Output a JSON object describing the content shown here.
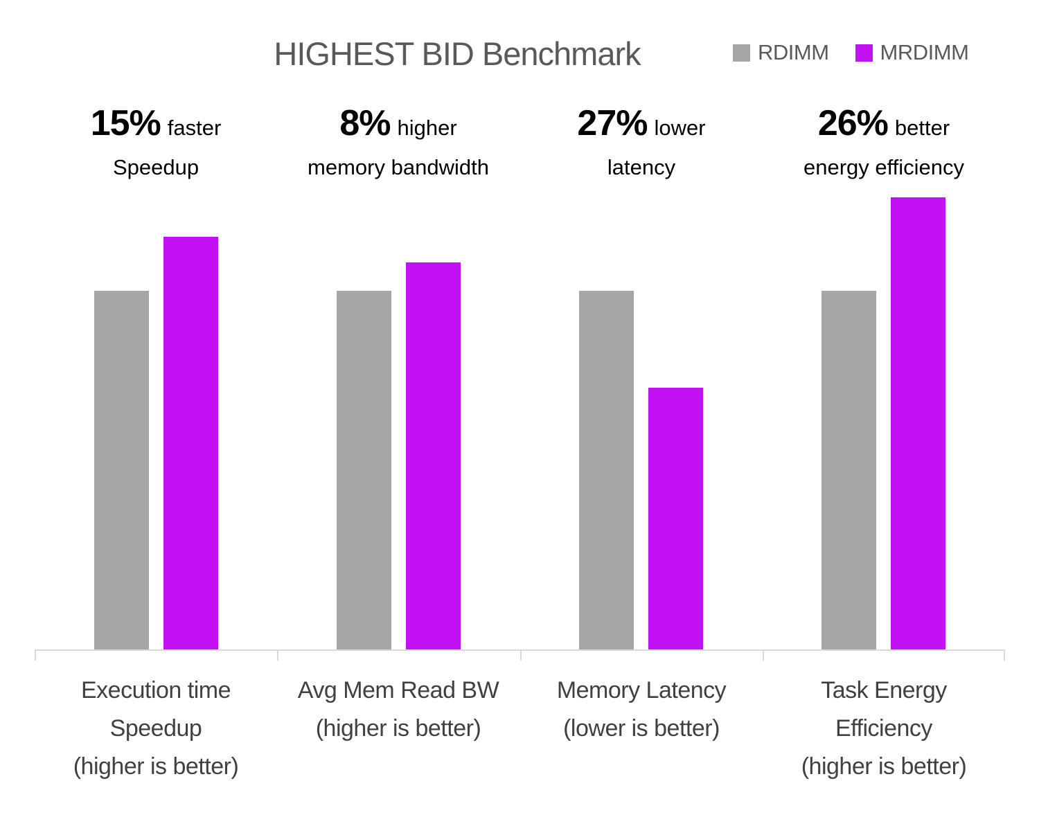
{
  "title": "HIGHEST BID Benchmark",
  "chart_data": {
    "type": "bar",
    "title": "HIGHEST BID Benchmark",
    "categories": [
      "Execution time Speedup (higher is better)",
      "Avg Mem Read BW (higher is better)",
      "Memory Latency (lower is better)",
      "Task Energy Efficiency (higher is better)"
    ],
    "category_label_lines": [
      [
        "Execution time",
        "Speedup",
        "(higher is better)"
      ],
      [
        "Avg Mem Read BW",
        "(higher is better)"
      ],
      [
        "Memory Latency",
        "(lower is better)"
      ],
      [
        "Task Energy",
        "Efficiency",
        "(higher is better)"
      ]
    ],
    "series": [
      {
        "name": "RDIMM",
        "color": "#a6a6a6",
        "values": [
          1.0,
          1.0,
          1.0,
          1.0
        ]
      },
      {
        "name": "MRDIMM",
        "color": "#c211f3",
        "values": [
          1.15,
          1.08,
          0.73,
          1.26
        ]
      }
    ],
    "annotations": [
      {
        "big": "15%",
        "small": "faster",
        "line2": "Speedup"
      },
      {
        "big": "8%",
        "small": "higher",
        "line2": "memory bandwidth"
      },
      {
        "big": "27%",
        "small": "lower",
        "line2": "latency"
      },
      {
        "big": "26%",
        "small": "better",
        "line2": "energy efficiency"
      }
    ],
    "ylim": [
      0,
      1.3
    ],
    "grid": false,
    "legend_position": "top-right",
    "colors": {
      "title_text": "#595959",
      "legend_text": "#595959",
      "axis_label_text": "#404040",
      "axis_line": "#d9d9d9",
      "annotation_text": "#000000"
    }
  }
}
